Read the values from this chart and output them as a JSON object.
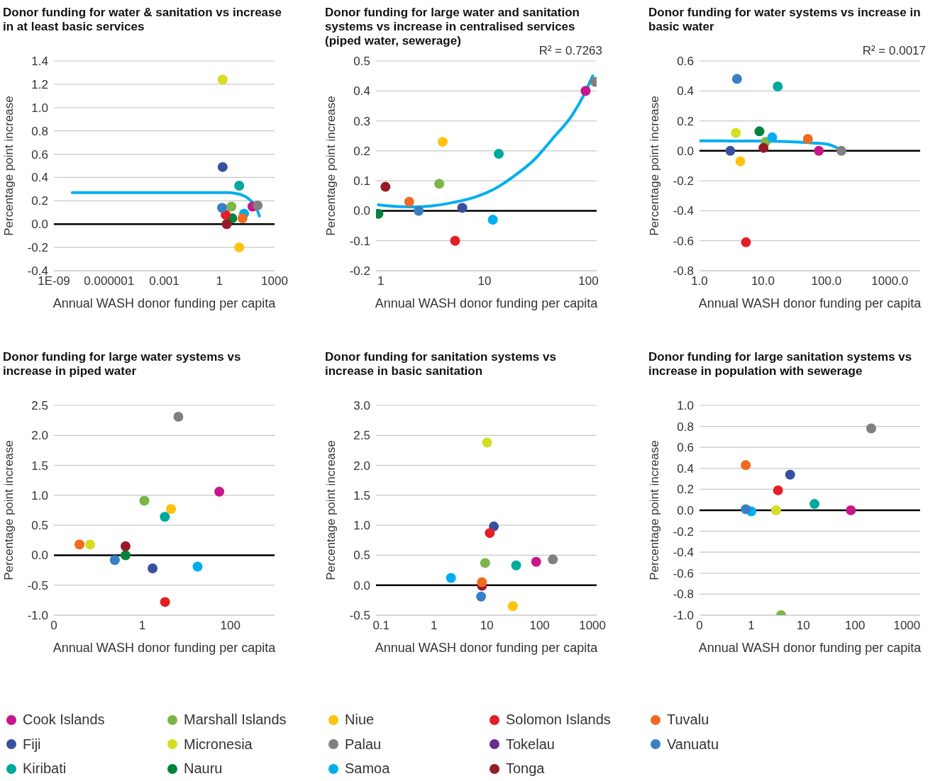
{
  "chart_data": [
    {
      "type": "scatter",
      "title": "Donor funding for water & sanitation vs increase in at least basic services",
      "xlabel": "Annual WASH donor funding per capita",
      "ylabel": "Percentage point increase",
      "log": "x",
      "xlim": [
        1e-09,
        1000
      ],
      "xticks": [
        {
          "value": 1e-09,
          "label": "1E-09"
        },
        {
          "value": 1e-06,
          "label": "0.000001"
        },
        0.001,
        1,
        1000
      ],
      "ylim": [
        -0.4,
        1.4
      ],
      "yticks": [
        -0.4,
        -0.2,
        {
          "value": 0,
          "label": "0.0"
        },
        0.2,
        0.4,
        0.6,
        0.8,
        {
          "value": 1,
          "label": "1.0"
        },
        1.2,
        1.4
      ],
      "grid": "y",
      "marker": "circle",
      "legend": "bottom",
      "ref_lines": [
        {
          "axis": "y",
          "value": 0,
          "color": "#000000"
        }
      ],
      "series": [
        {
          "name": "Cook Islands",
          "color": "#c8168a",
          "x": [
            63
          ],
          "values": [
            0.15
          ]
        },
        {
          "name": "Fiji",
          "color": "#3a4fa0",
          "x": [
            1.5
          ],
          "values": [
            0.49
          ]
        },
        {
          "name": "Kiribati",
          "color": "#00a99d",
          "x": [
            12
          ],
          "values": [
            0.33
          ]
        },
        {
          "name": "Marshall Islands",
          "color": "#7ab648",
          "x": [
            4.5
          ],
          "values": [
            0.15
          ]
        },
        {
          "name": "Micronesia",
          "color": "#d6de23",
          "x": [
            1.5
          ],
          "values": [
            1.24
          ]
        },
        {
          "name": "Nauru",
          "color": "#00843d",
          "x": [
            5
          ],
          "values": [
            0.05
          ]
        },
        {
          "name": "Niue",
          "color": "#ffc20e",
          "x": [
            12
          ],
          "values": [
            -0.2
          ]
        },
        {
          "name": "Palau",
          "color": "#808080",
          "x": [
            120
          ],
          "values": [
            0.16
          ]
        },
        {
          "name": "Samoa",
          "color": "#00aeef",
          "x": [
            22
          ],
          "values": [
            0.09
          ]
        },
        {
          "name": "Solomon Islands",
          "color": "#e31e26",
          "x": [
            2.2
          ],
          "values": [
            0.08
          ]
        },
        {
          "name": "Tokelau",
          "color": "#662d91"
        },
        {
          "name": "Tonga",
          "color": "#961a2a",
          "x": [
            2.5
          ],
          "values": [
            0.0
          ]
        },
        {
          "name": "Tuvalu",
          "color": "#f26a21",
          "x": [
            18
          ],
          "values": [
            0.05
          ]
        },
        {
          "name": "Vanuatu",
          "color": "#3a7fc4",
          "x": [
            1.4
          ],
          "values": [
            0.14
          ]
        },
        {
          "type": "line",
          "color": "#00aeef",
          "marker": "none",
          "x": [
            1e-08,
            1,
            3,
            10,
            30,
            60,
            100,
            150
          ],
          "values": [
            0.27,
            0.27,
            0.27,
            0.26,
            0.23,
            0.19,
            0.14,
            0.07
          ]
        }
      ]
    },
    {
      "type": "scatter",
      "title": "Donor funding for large water and sanitation systems vs increase in centralised services (piped water, sewerage)",
      "xlabel": "Annual WASH donor funding per capita",
      "ylabel": "Percentage point increase",
      "log": "x",
      "xlim": [
        0.9,
        120
      ],
      "xticks": [
        1,
        10,
        100
      ],
      "ylim": [
        -0.2,
        0.5
      ],
      "yticks": [
        -0.2,
        -0.1,
        {
          "value": 0,
          "label": "0.0"
        },
        0.1,
        0.2,
        0.3,
        0.4,
        0.5
      ],
      "grid": "y",
      "marker": "circle",
      "annotations": [
        "R² = 0.7263"
      ],
      "ref_lines": [
        {
          "axis": "y",
          "value": 0,
          "color": "#000000"
        }
      ],
      "series": [
        {
          "color": "#c8168a",
          "x": [
            94
          ],
          "values": [
            0.4
          ]
        },
        {
          "color": "#3a4fa0",
          "x": [
            6.1
          ],
          "values": [
            0.01
          ]
        },
        {
          "color": "#00a99d",
          "x": [
            13.7
          ],
          "values": [
            0.19
          ]
        },
        {
          "color": "#7ab648",
          "x": [
            3.66
          ],
          "values": [
            0.09
          ]
        },
        {
          "color": "#00843d",
          "x": [
            0.95
          ],
          "values": [
            -0.01
          ]
        },
        {
          "color": "#ffc20e",
          "x": [
            3.95
          ],
          "values": [
            0.23
          ]
        },
        {
          "color": "#808080",
          "x": [
            116
          ],
          "values": [
            0.43
          ]
        },
        {
          "color": "#00aeef",
          "x": [
            12
          ],
          "values": [
            -0.03
          ]
        },
        {
          "color": "#e31e26",
          "x": [
            5.2
          ],
          "values": [
            -0.1
          ]
        },
        {
          "color": "#961a2a",
          "x": [
            1.11
          ],
          "values": [
            0.08
          ]
        },
        {
          "color": "#f26a21",
          "x": [
            1.88
          ],
          "values": [
            0.03
          ]
        },
        {
          "color": "#3a7fc4",
          "x": [
            2.32
          ],
          "values": [
            0.0
          ]
        },
        {
          "type": "line",
          "color": "#00aeef",
          "marker": "none",
          "x": [
            0.95,
            1.5,
            2,
            3,
            5,
            8,
            12,
            20,
            30,
            45,
            70,
            90,
            110
          ],
          "values": [
            0.02,
            0.014,
            0.013,
            0.016,
            0.028,
            0.045,
            0.07,
            0.12,
            0.17,
            0.24,
            0.32,
            0.385,
            0.45
          ]
        }
      ]
    },
    {
      "type": "scatter",
      "title": "Donor funding for water systems vs increase in basic water",
      "xlabel": "Annual WASH donor funding per capita",
      "ylabel": "Percentage point increase",
      "log": "x",
      "xlim": [
        1,
        3000
      ],
      "xticks": [
        {
          "value": 1,
          "label": "1.0"
        },
        {
          "value": 10,
          "label": "10.0"
        },
        {
          "value": 100,
          "label": "100.0"
        },
        {
          "value": 1000,
          "label": "1000.0"
        }
      ],
      "ylim": [
        -0.8,
        0.6
      ],
      "yticks": [
        -0.8,
        -0.6,
        -0.4,
        -0.2,
        {
          "value": 0,
          "label": "0.0"
        },
        0.2,
        0.4,
        0.6
      ],
      "grid": "y",
      "marker": "circle",
      "annotations": [
        "R² = 0.0017"
      ],
      "ref_lines": [
        {
          "axis": "y",
          "value": 0,
          "color": "#000000"
        }
      ],
      "series": [
        {
          "color": "#c8168a",
          "x": [
            76
          ],
          "values": [
            0.0
          ]
        },
        {
          "color": "#3a4fa0",
          "x": [
            3.06
          ],
          "values": [
            0.0
          ]
        },
        {
          "color": "#00a99d",
          "x": [
            17.1
          ],
          "values": [
            0.43
          ]
        },
        {
          "color": "#7ab648",
          "x": [
            11
          ],
          "values": [
            0.06
          ]
        },
        {
          "color": "#d6de23",
          "x": [
            3.74
          ],
          "values": [
            0.12
          ]
        },
        {
          "color": "#00843d",
          "x": [
            8.8
          ],
          "values": [
            0.13
          ]
        },
        {
          "color": "#ffc20e",
          "x": [
            4.4
          ],
          "values": [
            -0.07
          ]
        },
        {
          "color": "#808080",
          "x": [
            172
          ],
          "values": [
            0.0
          ]
        },
        {
          "color": "#00aeef",
          "x": [
            14
          ],
          "values": [
            0.09
          ]
        },
        {
          "color": "#e31e26",
          "x": [
            5.4
          ],
          "values": [
            -0.61
          ]
        },
        {
          "color": "#961a2a",
          "x": [
            10.2
          ],
          "values": [
            0.02
          ]
        },
        {
          "color": "#f26a21",
          "x": [
            51
          ],
          "values": [
            0.08
          ]
        },
        {
          "color": "#3a7fc4",
          "x": [
            3.9
          ],
          "values": [
            0.48
          ]
        },
        {
          "type": "line",
          "color": "#00aeef",
          "marker": "none",
          "x": [
            1,
            3,
            10,
            30,
            60,
            100,
            140,
            180
          ],
          "values": [
            0.067,
            0.066,
            0.065,
            0.06,
            0.053,
            0.045,
            0.025,
            0.0
          ]
        }
      ]
    },
    {
      "type": "scatter",
      "title": "Donor funding for large water systems vs increase in piped water",
      "xlabel": "Annual WASH donor funding per capita",
      "ylabel": "Percentage point increase",
      "log": "x",
      "xlim": [
        0.01,
        1000
      ],
      "xticks": [
        {
          "value": 0.01,
          "label": "0"
        },
        1,
        100
      ],
      "ylim": [
        -1,
        2.5
      ],
      "yticks": [
        {
          "value": -1,
          "label": "-1.0"
        },
        -0.5,
        {
          "value": 0,
          "label": "0.0"
        },
        0.5,
        {
          "value": 1,
          "label": "1.0"
        },
        1.5,
        {
          "value": 2,
          "label": "2.0"
        },
        2.5
      ],
      "grid": "y",
      "marker": "circle",
      "ref_lines": [
        {
          "axis": "y",
          "value": 0,
          "color": "#000000"
        }
      ],
      "series": [
        {
          "color": "#c8168a",
          "x": [
            56
          ],
          "values": [
            1.06
          ]
        },
        {
          "color": "#3a4fa0",
          "x": [
            1.72
          ],
          "values": [
            -0.22
          ]
        },
        {
          "color": "#00a99d",
          "x": [
            3.26
          ],
          "values": [
            0.64
          ]
        },
        {
          "color": "#7ab648",
          "x": [
            1.12
          ],
          "values": [
            0.91
          ]
        },
        {
          "color": "#d6de23",
          "x": [
            0.066
          ],
          "values": [
            0.18
          ]
        },
        {
          "color": "#00843d",
          "x": [
            0.42
          ],
          "values": [
            0.0
          ]
        },
        {
          "color": "#ffc20e",
          "x": [
            4.5
          ],
          "values": [
            0.77
          ]
        },
        {
          "color": "#808080",
          "x": [
            6.6
          ],
          "values": [
            2.31
          ]
        },
        {
          "color": "#00aeef",
          "x": [
            18
          ],
          "values": [
            -0.19
          ]
        },
        {
          "color": "#e31e26",
          "x": [
            3.3
          ],
          "values": [
            -0.78
          ]
        },
        {
          "color": "#961a2a",
          "x": [
            0.42
          ],
          "values": [
            0.15
          ]
        },
        {
          "color": "#f26a21",
          "x": [
            0.038
          ],
          "values": [
            0.18
          ]
        },
        {
          "color": "#3a7fc4",
          "x": [
            0.24
          ],
          "values": [
            -0.08
          ]
        }
      ]
    },
    {
      "type": "scatter",
      "title": "Donor funding for sanitation systems vs increase in basic sanitation",
      "xlabel": "Annual WASH donor funding per capita",
      "ylabel": "Percentage point increase",
      "log": "x",
      "xlim": [
        0.08,
        1200
      ],
      "xticks": [
        0.1,
        1,
        10,
        100,
        1000
      ],
      "ylim": [
        -0.5,
        3
      ],
      "yticks": [
        -0.5,
        {
          "value": 0,
          "label": "0.0"
        },
        0.5,
        {
          "value": 1,
          "label": "1.0"
        },
        1.5,
        {
          "value": 2,
          "label": "2.0"
        },
        2.5,
        {
          "value": 3,
          "label": "3.0"
        }
      ],
      "grid": "y",
      "marker": "circle",
      "ref_lines": [
        {
          "axis": "y",
          "value": 0,
          "color": "#000000"
        }
      ],
      "series": [
        {
          "color": "#c8168a",
          "x": [
            86
          ],
          "values": [
            0.39
          ]
        },
        {
          "color": "#3a4fa0",
          "x": [
            13.6
          ],
          "values": [
            0.98
          ]
        },
        {
          "color": "#00a99d",
          "x": [
            36
          ],
          "values": [
            0.33
          ]
        },
        {
          "color": "#7ab648",
          "x": [
            9.3
          ],
          "values": [
            0.37
          ]
        },
        {
          "color": "#d6de23",
          "x": [
            10.1
          ],
          "values": [
            2.38
          ]
        },
        {
          "color": "#ffc20e",
          "x": [
            31
          ],
          "values": [
            -0.35
          ]
        },
        {
          "color": "#808080",
          "x": [
            178
          ],
          "values": [
            0.43
          ]
        },
        {
          "color": "#00aeef",
          "x": [
            2.1
          ],
          "values": [
            0.12
          ]
        },
        {
          "color": "#e31e26",
          "x": [
            11.4
          ],
          "values": [
            0.87
          ]
        },
        {
          "color": "#961a2a",
          "x": [
            8.1
          ],
          "values": [
            -0.01
          ]
        },
        {
          "color": "#f26a21",
          "x": [
            8.1
          ],
          "values": [
            0.05
          ]
        },
        {
          "color": "#3a7fc4",
          "x": [
            7.8
          ],
          "values": [
            -0.19
          ]
        }
      ]
    },
    {
      "type": "scatter",
      "title": "Donor funding for large sanitation systems vs increase in population with sewerage",
      "xlabel": "Annual WASH donor funding per capita",
      "ylabel": "Percentage point increase",
      "log": "x",
      "xlim": [
        0.1,
        1800
      ],
      "xticks": [
        {
          "value": 0.1,
          "label": "0"
        },
        1,
        10,
        100,
        1000
      ],
      "ylim": [
        -1,
        1
      ],
      "yticks": [
        {
          "value": -1,
          "label": "-1.0"
        },
        -0.8,
        -0.6,
        -0.4,
        -0.2,
        {
          "value": 0,
          "label": "0.0"
        },
        0.2,
        0.4,
        0.6,
        0.8,
        {
          "value": 1,
          "label": "1.0"
        }
      ],
      "grid": "y",
      "marker": "circle",
      "ref_lines": [
        {
          "axis": "y",
          "value": 0,
          "color": "#000000"
        }
      ],
      "series": [
        {
          "color": "#c8168a",
          "x": [
            83
          ],
          "values": [
            0.0
          ]
        },
        {
          "color": "#3a4fa0",
          "x": [
            5.6
          ],
          "values": [
            0.34
          ]
        },
        {
          "color": "#00a99d",
          "x": [
            16.5
          ],
          "values": [
            0.06
          ]
        },
        {
          "color": "#7ab648",
          "x": [
            3.75
          ],
          "values": [
            -1.0
          ]
        },
        {
          "color": "#d6de23",
          "x": [
            3.0
          ],
          "values": [
            0.0
          ]
        },
        {
          "color": "#808080",
          "x": [
            205
          ],
          "values": [
            0.78
          ]
        },
        {
          "color": "#00aeef",
          "x": [
            1.0
          ],
          "values": [
            -0.01
          ]
        },
        {
          "color": "#e31e26",
          "x": [
            3.27
          ],
          "values": [
            0.19
          ]
        },
        {
          "color": "#f26a21",
          "x": [
            0.78
          ],
          "values": [
            0.43
          ]
        },
        {
          "color": "#3a7fc4",
          "x": [
            0.78
          ],
          "values": [
            0.01
          ]
        }
      ]
    }
  ]
}
